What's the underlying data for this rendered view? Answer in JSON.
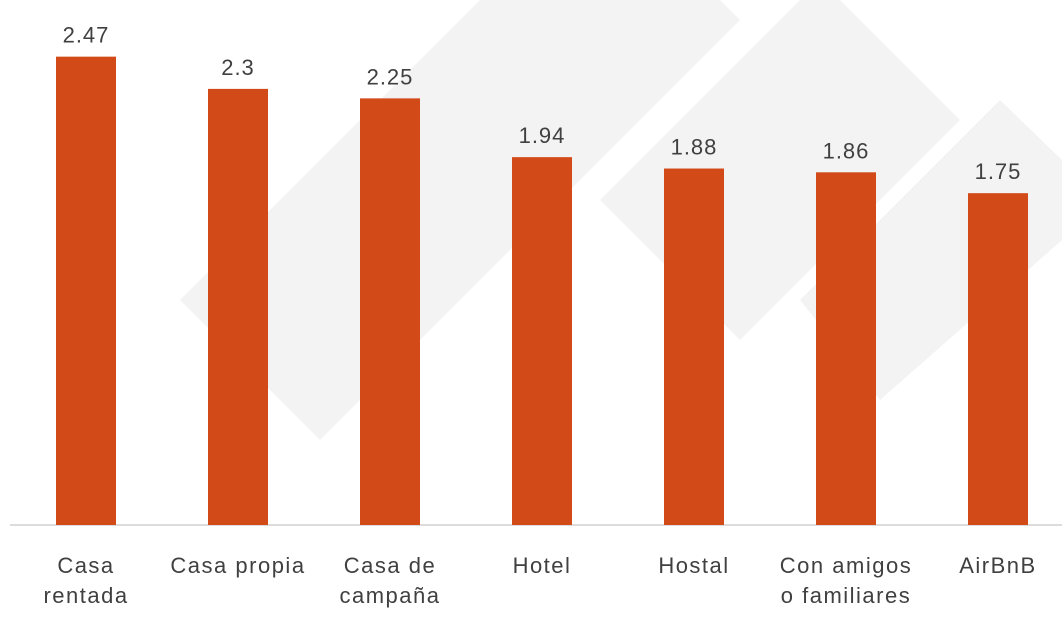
{
  "chart_data": {
    "type": "bar",
    "categories": [
      "Casa rentada",
      "Casa propia",
      "Casa de campaña",
      "Hotel",
      "Hostal",
      "Con amigos o familiares",
      "AirBnB"
    ],
    "values": [
      2.47,
      2.3,
      2.25,
      1.94,
      1.88,
      1.86,
      1.75
    ],
    "color": "#d24a17",
    "ylim": [
      0,
      2.6
    ]
  }
}
